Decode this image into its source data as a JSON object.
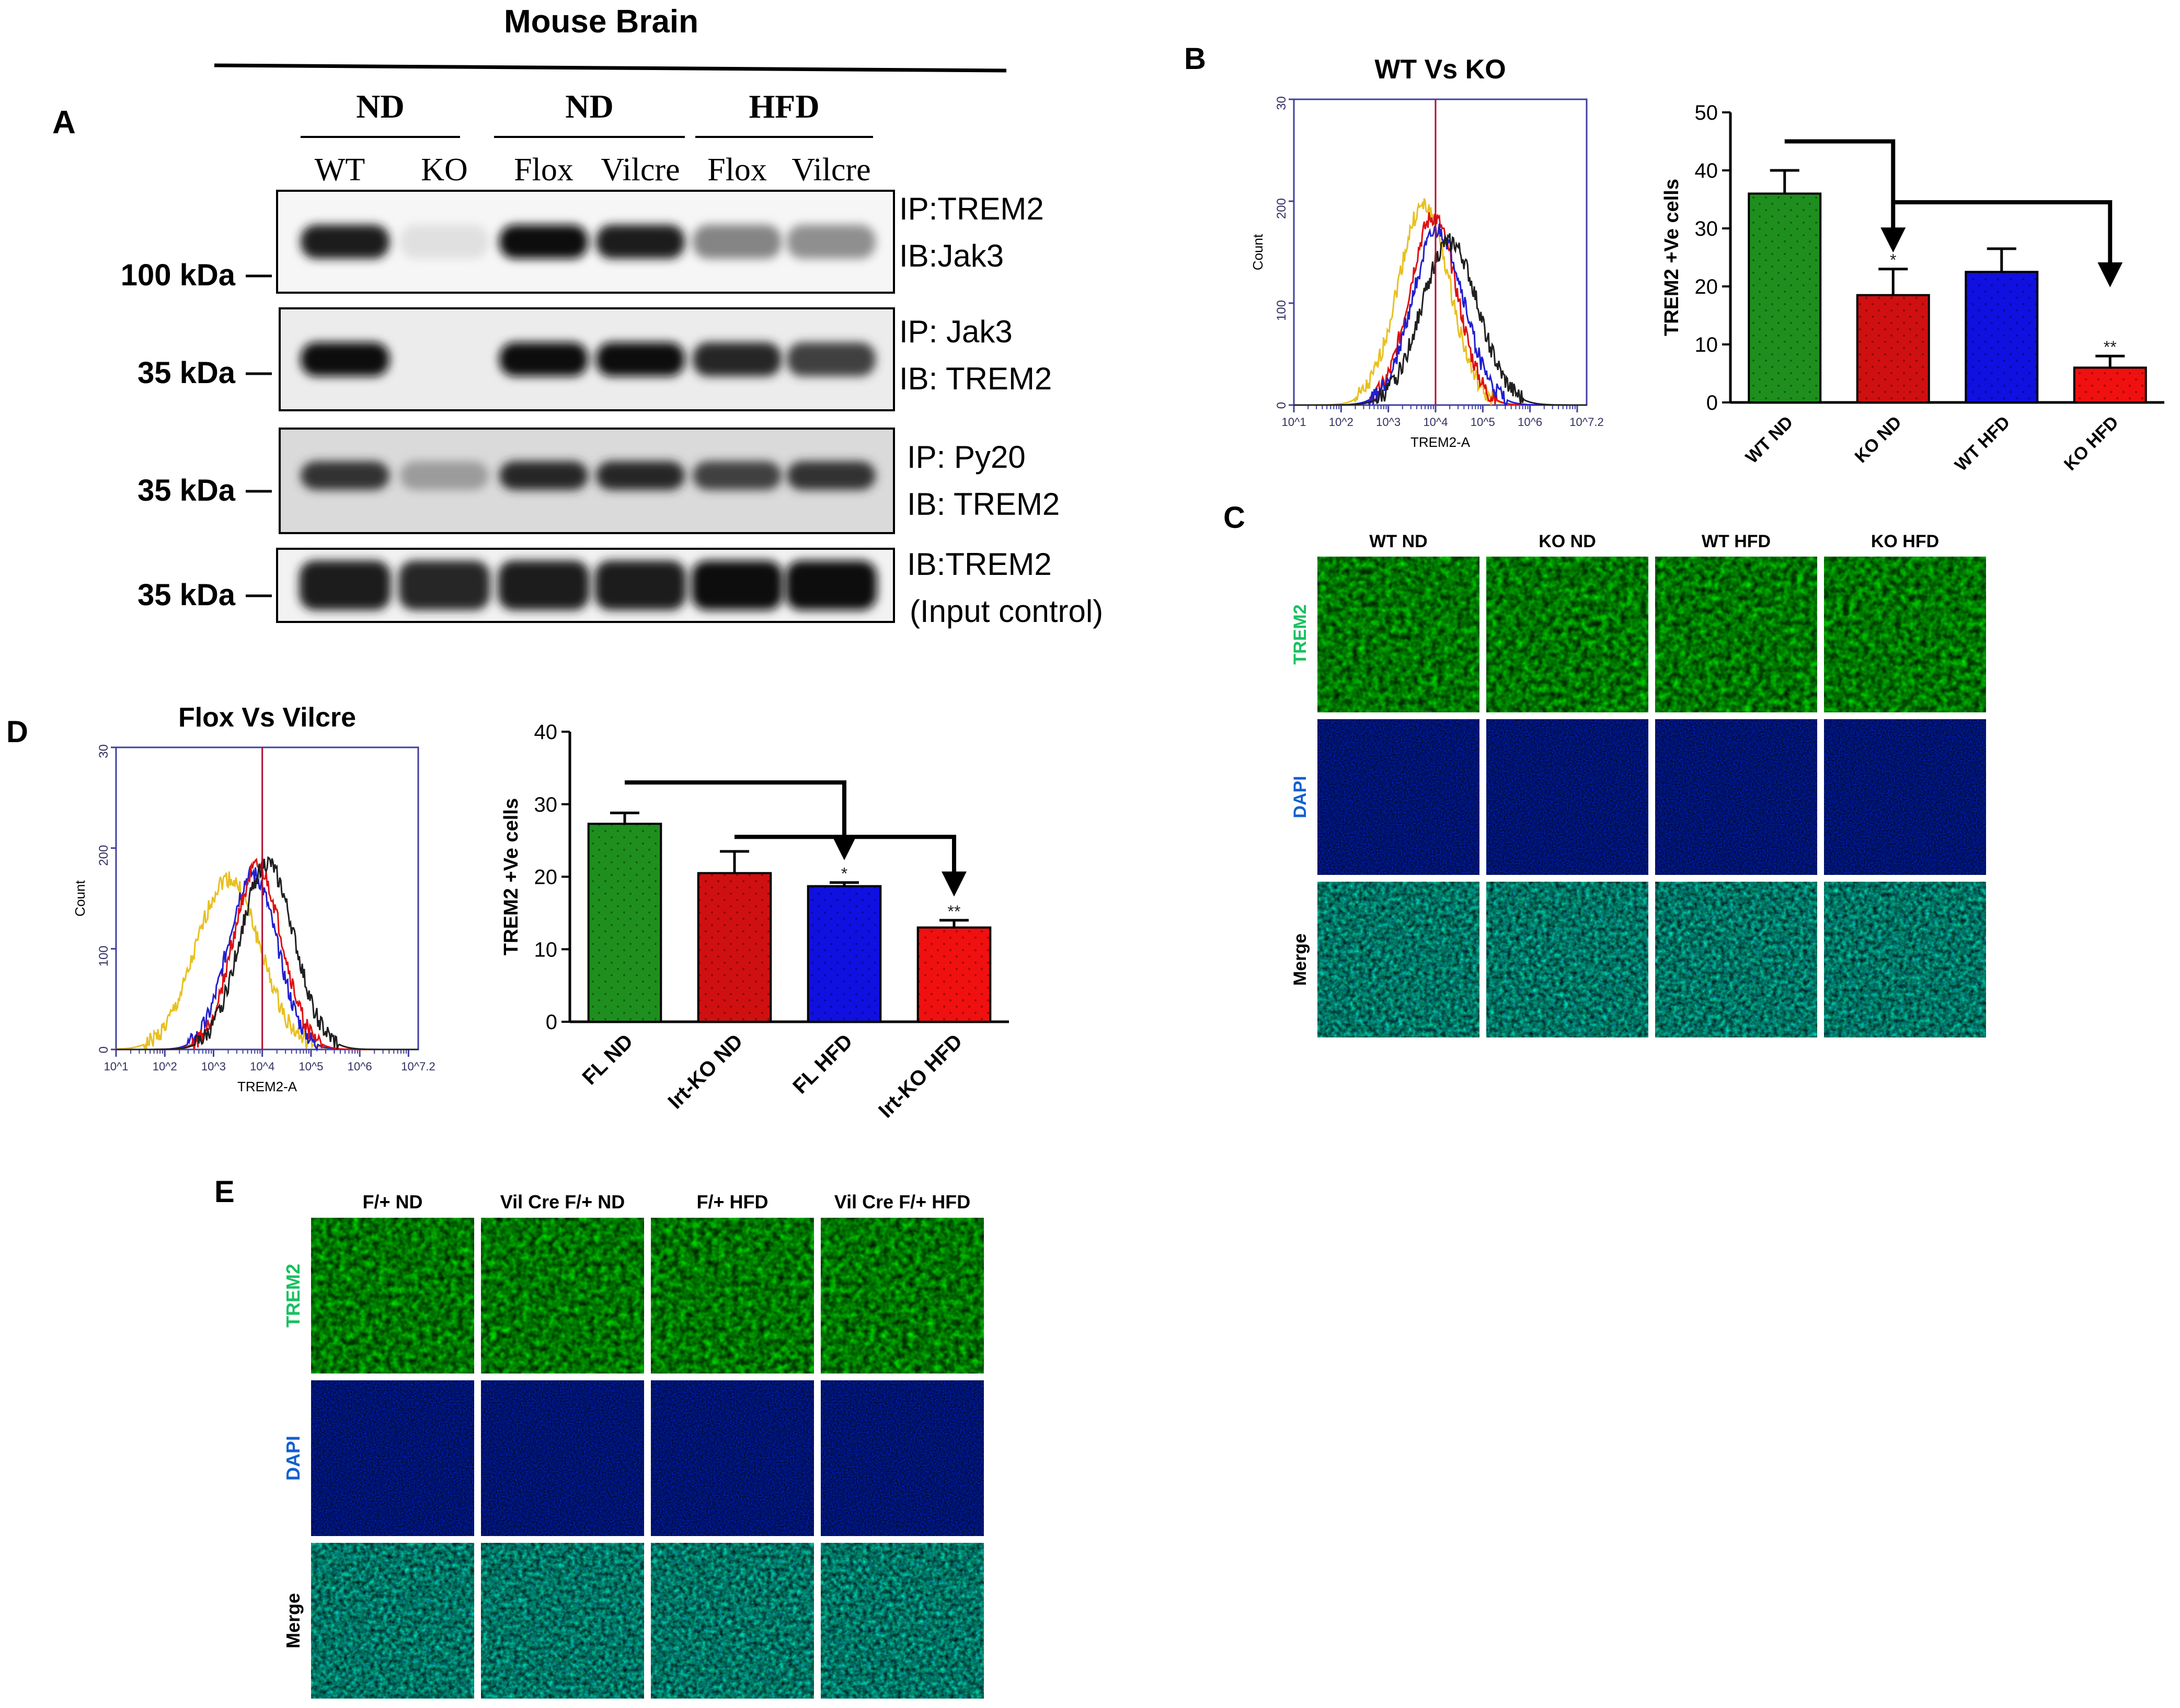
{
  "header": {
    "title": "Mouse Brain"
  },
  "panelA": {
    "label": "A",
    "groups": [
      "ND",
      "ND",
      "HFD"
    ],
    "lanes": [
      "WT",
      "KO",
      "Flox",
      "Vilcre",
      "Flox",
      "Vilcre"
    ],
    "blots": [
      {
        "marker": "100 kDa",
        "ip": "IP:TREM2",
        "ib": "IB:Jak3"
      },
      {
        "marker": "35 kDa",
        "ip": "IP: Jak3",
        "ib": "IB: TREM2"
      },
      {
        "marker": "35 kDa",
        "ip": "IP: Py20",
        "ib": "IB: TREM2"
      },
      {
        "marker": "35 kDa",
        "ip": "IB:TREM2",
        "ib": "(Input control)"
      }
    ],
    "band_intensity": [
      [
        0.9,
        0.05,
        0.95,
        0.9,
        0.45,
        0.4
      ],
      [
        0.95,
        0.0,
        0.95,
        0.95,
        0.85,
        0.75
      ],
      [
        0.8,
        0.35,
        0.85,
        0.85,
        0.75,
        0.8
      ],
      [
        0.9,
        0.85,
        0.9,
        0.9,
        0.95,
        0.95
      ]
    ]
  },
  "panelB": {
    "label": "B",
    "hist_title": "WT Vs KO",
    "hist_ylabel": "Count",
    "hist_xlabel": "TREM2-A",
    "hist_yticks": [
      "0",
      "100",
      "200",
      "30"
    ],
    "hist_xticks": [
      "10^1",
      "10^2",
      "10^3",
      "10^4",
      "10^5",
      "10^6",
      "10^7.2"
    ]
  },
  "panelC": {
    "label": "C",
    "columns": [
      "WT ND",
      "KO ND",
      "WT HFD",
      "KO HFD"
    ],
    "rows": [
      "TREM2",
      "DAPI",
      "Merge"
    ]
  },
  "panelD": {
    "label": "D",
    "hist_title": "Flox Vs Vilcre",
    "hist_ylabel": "Count",
    "hist_xlabel": "TREM2-A",
    "hist_yticks": [
      "0",
      "100",
      "200",
      "30"
    ],
    "hist_xticks": [
      "10^1",
      "10^2",
      "10^3",
      "10^4",
      "10^5",
      "10^6",
      "10^7.2"
    ]
  },
  "panelE": {
    "label": "E",
    "columns": [
      "F/+ ND",
      "Vil Cre F/+ ND",
      "F/+ HFD",
      "Vil Cre F/+ HFD"
    ],
    "rows": [
      "TREM2",
      "DAPI",
      "Merge"
    ]
  },
  "colors": {
    "green": "#1e8f1e",
    "red": "#d01010",
    "blue": "#1010e0",
    "bright_red": "#f01010"
  },
  "chart_data": [
    {
      "type": "bar",
      "panel": "B",
      "categories": [
        "WT ND",
        "KO ND",
        "WT HFD",
        "KO HFD"
      ],
      "values": [
        36,
        18.5,
        22.5,
        6
      ],
      "errors": [
        4,
        4.5,
        4,
        2
      ],
      "significance": [
        "",
        "*",
        "",
        "**"
      ],
      "ylabel": "TREM2 +Ve cells",
      "ylim": [
        0,
        50
      ],
      "yticks": [
        0,
        10,
        20,
        30,
        40,
        50
      ]
    },
    {
      "type": "bar",
      "panel": "D",
      "categories": [
        "FL ND",
        "Irt-KO ND",
        "FL HFD",
        "Irt-KO HFD"
      ],
      "values": [
        27.3,
        20.5,
        18.7,
        13
      ],
      "errors": [
        1.5,
        3,
        0.5,
        1
      ],
      "significance": [
        "",
        "",
        "*",
        "**"
      ],
      "ylabel": "TREM2 +Ve cells",
      "ylim": [
        0,
        40
      ],
      "yticks": [
        0,
        10,
        20,
        30,
        40
      ]
    },
    {
      "type": "line",
      "panel": "B",
      "title": "WT Vs KO",
      "xlabel": "TREM2-A",
      "ylabel": "Count",
      "series": [
        {
          "color": "#e8c020",
          "peak_x": 3.75,
          "peak_y": 195,
          "width": 0.55
        },
        {
          "color": "#e01010",
          "peak_x": 3.95,
          "peak_y": 185,
          "width": 0.5
        },
        {
          "color": "#2020d0",
          "peak_x": 4.05,
          "peak_y": 170,
          "width": 0.55
        },
        {
          "color": "#202020",
          "peak_x": 4.3,
          "peak_y": 160,
          "width": 0.6
        }
      ],
      "marker_x": 4.0
    },
    {
      "type": "line",
      "panel": "D",
      "title": "Flox Vs Vilcre",
      "xlabel": "TREM2-A",
      "ylabel": "Count",
      "series": [
        {
          "color": "#e8c020",
          "peak_x": 3.3,
          "peak_y": 170,
          "width": 0.65
        },
        {
          "color": "#2020d0",
          "peak_x": 3.8,
          "peak_y": 175,
          "width": 0.5
        },
        {
          "color": "#e01010",
          "peak_x": 3.9,
          "peak_y": 180,
          "width": 0.5
        },
        {
          "color": "#202020",
          "peak_x": 4.1,
          "peak_y": 185,
          "width": 0.55
        }
      ],
      "marker_x": 4.0
    }
  ]
}
